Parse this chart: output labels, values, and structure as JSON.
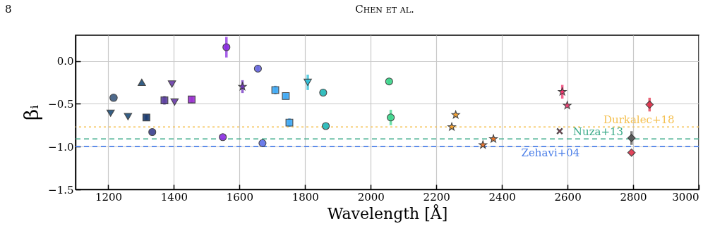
{
  "chart_data": {
    "type": "scatter",
    "xlabel": "Wavelength [Å]",
    "ylabel": "βᵢ",
    "annotations": [
      "8",
      "Chen et al."
    ],
    "xlim": [
      1100,
      3000
    ],
    "xticks": [
      1200,
      1400,
      1600,
      1800,
      2000,
      2200,
      2400,
      2600,
      2800,
      3000
    ],
    "ylim": [
      -1.5,
      0.3
    ],
    "yticks": [
      {
        "value": -1.5,
        "label": "−1.5"
      },
      {
        "value": -1.0,
        "label": "−1.0"
      },
      {
        "value": -0.5,
        "label": "−0.5"
      },
      {
        "value": 0,
        "label": "0.0"
      }
    ],
    "grid": true,
    "series": [
      {
        "type": "scatter",
        "marker": "circle",
        "color": "#3d5a80",
        "x": [
          1216
        ],
        "values": [
          -0.43
        ]
      },
      {
        "type": "scatter",
        "marker": "triangle-down",
        "color": "#1f4e79",
        "x": [
          1207,
          1260
        ],
        "values": [
          -0.61,
          -0.65
        ]
      },
      {
        "type": "scatter",
        "marker": "triangle",
        "color": "#1f4e79",
        "x": [
          1302
        ],
        "values": [
          -0.25
        ]
      },
      {
        "type": "scatter",
        "marker": "square",
        "color": "#1a3a6e",
        "x": [
          1316
        ],
        "values": [
          -0.66
        ],
        "errors": [
          0.03
        ]
      },
      {
        "type": "scatter",
        "color": "#3a3f8f",
        "x": [
          1334
        ],
        "values": [
          -0.83
        ]
      },
      {
        "type": "scatter",
        "marker": "square",
        "color": "#5b3fa0",
        "x": [
          1371
        ],
        "values": [
          -0.46
        ],
        "errors": [
          0.05
        ]
      },
      {
        "type": "scatter",
        "marker": "triangle-down",
        "color": "#6a3aaa",
        "x": [
          1394,
          1402
        ],
        "values": [
          -0.27,
          -0.48
        ]
      },
      {
        "type": "scatter",
        "marker": "square",
        "color": "#9b30d0",
        "x": [
          1454
        ],
        "values": [
          -0.45
        ],
        "errors": [
          0.04
        ]
      },
      {
        "type": "scatter",
        "color": "#8a2be2",
        "x": [
          1560,
          1549
        ],
        "values": [
          0.16,
          -0.89
        ],
        "errors": [
          0.12,
          null
        ]
      },
      {
        "type": "scatter",
        "marker": "star",
        "color": "#6f2fc0",
        "x": [
          1609
        ],
        "values": [
          -0.3
        ],
        "errors": [
          0.075
        ]
      },
      {
        "type": "scatter",
        "color": "#6a6ae0",
        "x": [
          1656
        ],
        "values": [
          -0.09
        ],
        "errors": [
          0.04
        ]
      },
      {
        "type": "scatter",
        "color": "#5b6ee8",
        "x": [
          1670
        ],
        "values": [
          -0.96
        ]
      },
      {
        "type": "scatter",
        "marker": "square",
        "color": "#3fa9f5",
        "x": [
          1709,
          1741,
          1752
        ],
        "values": [
          -0.34,
          -0.41,
          -0.72
        ],
        "errors": [
          0.05,
          0.03,
          0.05
        ]
      },
      {
        "type": "scatter",
        "marker": "triangle-down",
        "color": "#2bbfd8",
        "x": [
          1808
        ],
        "values": [
          -0.25
        ],
        "errors": [
          0.09
        ]
      },
      {
        "type": "scatter",
        "color": "#20b8b8",
        "x": [
          1855,
          1863
        ],
        "values": [
          -0.37,
          -0.76
        ]
      },
      {
        "type": "scatter",
        "color": "#3dd68c",
        "x": [
          2056,
          2061
        ],
        "values": [
          -0.24,
          -0.66
        ],
        "errors": [
          0.04,
          0.09
        ]
      },
      {
        "type": "scatter",
        "marker": "star",
        "color": "#f59a20",
        "x": [
          2259,
          2247
        ],
        "values": [
          -0.63,
          -0.77
        ]
      },
      {
        "type": "scatter",
        "marker": "star",
        "color": "#f06a1a",
        "x": [
          2342,
          2374
        ],
        "values": [
          -0.98,
          -0.91
        ]
      },
      {
        "type": "scatter",
        "marker": "star",
        "color": "#f0306a",
        "x": [
          2584,
          2599
        ],
        "values": [
          -0.36,
          -0.52
        ],
        "errors": [
          0.08,
          null
        ]
      },
      {
        "type": "scatter",
        "marker": "cross",
        "color": "#e0205a",
        "x": [
          2576
        ],
        "values": [
          -0.82
        ]
      },
      {
        "type": "scatter",
        "marker": "diamond",
        "color": "#555555",
        "x": [
          2795
        ],
        "values": [
          -0.9
        ],
        "errors": [
          0.08
        ]
      },
      {
        "type": "scatter",
        "marker": "diamond",
        "color": "#e0304a",
        "x": [
          2795,
          2850
        ],
        "values": [
          -1.07,
          -0.51
        ],
        "errors": [
          null,
          0.08
        ]
      }
    ],
    "ref_lines": [
      {
        "axis": "y",
        "value": -0.77,
        "label": "Durkalec+18",
        "color": "#f5c050",
        "line_style": "dotted"
      },
      {
        "axis": "y",
        "value": -0.91,
        "label": "Nuza+13",
        "color": "#3aaa88",
        "line_style": "dashed"
      },
      {
        "axis": "y",
        "value": -1.0,
        "label": "Zehavi+04",
        "color": "#4a7ee8",
        "line_style": "dashed"
      }
    ]
  }
}
